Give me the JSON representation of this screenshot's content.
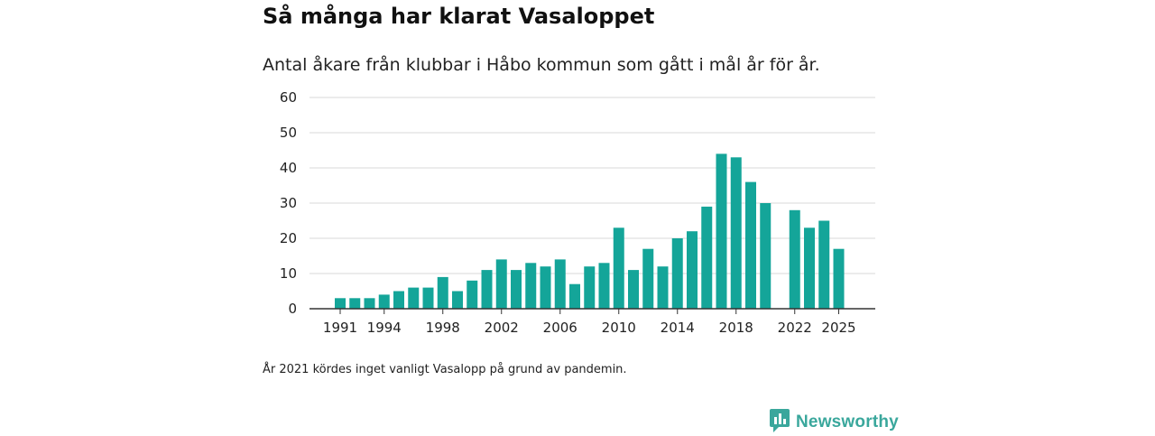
{
  "title": "Så många har klarat Vasaloppet",
  "subtitle": "Antal åkare från klubbar i Håbo kommun som gått i mål år för år.",
  "footnote": "År 2021 kördes inget vanligt Vasalopp på grund av pandemin.",
  "brand": {
    "name": "Newsworthy",
    "icon": "newsworthy-logo-icon",
    "color": "#3aa79c"
  },
  "chart_data": {
    "type": "bar",
    "title": "Så många har klarat Vasaloppet",
    "xlabel": "",
    "ylabel": "",
    "bar_color": "#14a599",
    "ylim": [
      0,
      60
    ],
    "yticks": [
      0,
      10,
      20,
      30,
      40,
      50,
      60
    ],
    "xticks": [
      "1991",
      "1994",
      "1998",
      "2002",
      "2006",
      "2010",
      "2014",
      "2018",
      "2022",
      "2025"
    ],
    "grid": true,
    "categories": [
      "1991",
      "1992",
      "1993",
      "1994",
      "1995",
      "1996",
      "1997",
      "1998",
      "1999",
      "2000",
      "2001",
      "2002",
      "2003",
      "2004",
      "2005",
      "2006",
      "2007",
      "2008",
      "2009",
      "2010",
      "2011",
      "2012",
      "2013",
      "2014",
      "2015",
      "2016",
      "2017",
      "2018",
      "2019",
      "2020",
      "2021",
      "2022",
      "2023",
      "2024",
      "2025"
    ],
    "values": [
      3,
      3,
      3,
      4,
      5,
      6,
      6,
      9,
      5,
      8,
      11,
      14,
      11,
      13,
      12,
      14,
      7,
      12,
      13,
      23,
      11,
      17,
      12,
      20,
      22,
      29,
      44,
      43,
      36,
      30,
      0,
      28,
      23,
      25,
      17
    ]
  }
}
